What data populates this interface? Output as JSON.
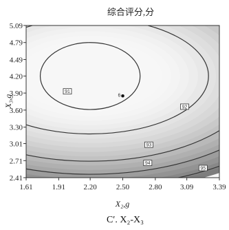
{
  "chart_data": {
    "type": "contour",
    "title": "综合评分,分",
    "xlabel": "X₂,g",
    "ylabel": "X₃,g",
    "xlim": [
      1.61,
      3.39
    ],
    "ylim": [
      2.41,
      5.09
    ],
    "x_ticks": [
      "1.61",
      "1.91",
      "2.20",
      "2.50",
      "2.80",
      "3.09",
      "3.39"
    ],
    "y_ticks": [
      "5.09",
      "4.79",
      "4.49",
      "4.20",
      "3.90",
      "3.60",
      "3.30",
      "3.01",
      "2.71",
      "2.41"
    ],
    "center": {
      "x": 2.2,
      "y": 4.2
    },
    "design_point": {
      "label": "6",
      "x": 2.5,
      "y": 3.85
    },
    "contours": [
      {
        "label": "91",
        "x_radius": 0.46,
        "y_radius": 0.59,
        "label_pos": {
          "x": 1.99,
          "y": 3.93
        }
      },
      {
        "label": "92",
        "x_radius": 1.09,
        "y_radius": 1.02,
        "label_pos": {
          "x": 3.07,
          "y": 3.66
        }
      },
      {
        "label": "93",
        "x_radius": 1.55,
        "y_radius": 1.5,
        "label_pos": {
          "x": 2.74,
          "y": 2.99
        }
      },
      {
        "label": "94",
        "x_radius": 1.81,
        "y_radius": 1.73,
        "label_pos": {
          "x": 2.73,
          "y": 2.67
        }
      },
      {
        "label": "95",
        "x_radius": 2.05,
        "y_radius": 1.95,
        "label_pos": {
          "x": 3.24,
          "y": 2.58
        }
      }
    ],
    "shading": {
      "light": "#f7f7f7",
      "dark": "#7d7d7d"
    },
    "caption": "C′. X₂-X₃"
  }
}
